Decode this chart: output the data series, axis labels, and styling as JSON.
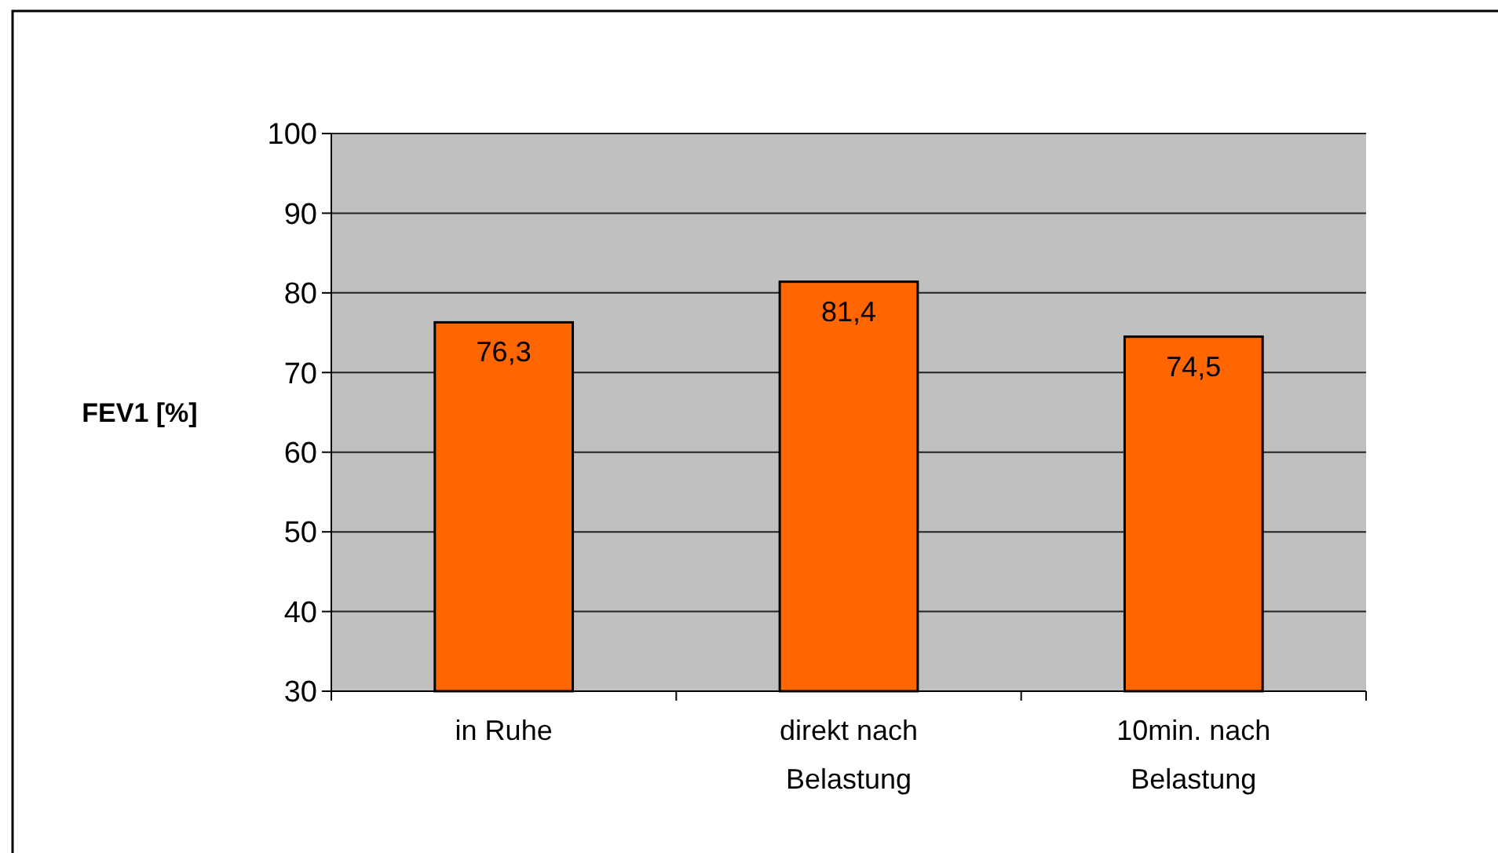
{
  "chart_data": {
    "type": "bar",
    "ylabel": "FEV1 [%]",
    "categories": [
      "in Ruhe",
      "direkt nach Belastung",
      "10min. nach Belastung"
    ],
    "values": [
      76.3,
      81.4,
      74.5
    ],
    "value_labels": [
      "76,3",
      "81,4",
      "74,5"
    ],
    "color": "#ff6600",
    "ylim": [
      30,
      100
    ],
    "yticks": [
      30,
      40,
      50,
      60,
      70,
      80,
      90,
      100
    ],
    "grid": "y"
  }
}
